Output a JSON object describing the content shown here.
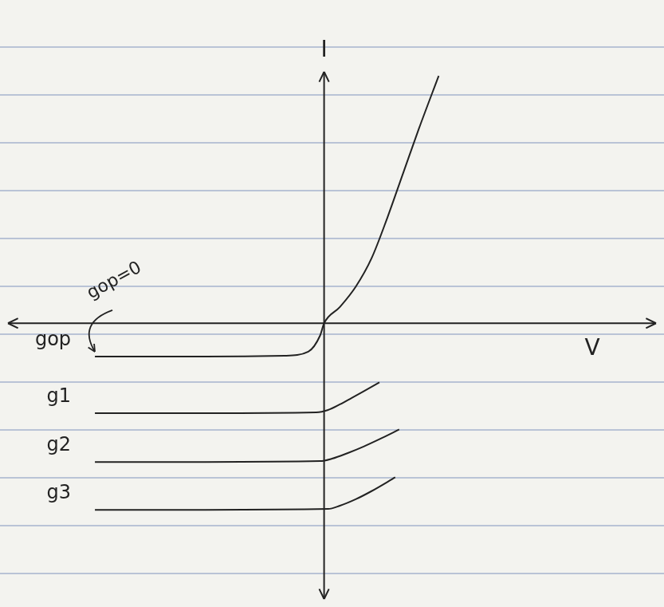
{
  "chart_data": {
    "type": "line",
    "x_label": "V",
    "y_label": "I",
    "xlim": [
      -4,
      4.2
    ],
    "ylim": [
      -3.4,
      3.1
    ],
    "tick_labels": false,
    "grid": false,
    "series": [
      {
        "name": "gop",
        "color": "#222222",
        "x": [
          -2.9,
          -1.5,
          -0.5,
          -0.2,
          -0.05,
          0,
          0.2,
          0.4,
          0.6,
          0.8,
          1.0,
          1.2,
          1.45
        ],
        "values": [
          -0.41,
          -0.41,
          -0.4,
          -0.35,
          -0.15,
          0,
          0.2,
          0.45,
          0.8,
          1.3,
          1.85,
          2.4,
          3.05
        ]
      },
      {
        "name": "g1",
        "color": "#222222",
        "x": [
          -2.9,
          -1.5,
          -0.1,
          0.05,
          0.2,
          0.35,
          0.5,
          0.7
        ],
        "values": [
          -1.11,
          -1.11,
          -1.1,
          -1.07,
          -1.0,
          -0.92,
          -0.84,
          -0.73
        ]
      },
      {
        "name": "g2",
        "color": "#222222",
        "x": [
          -2.9,
          -1.5,
          -0.05,
          0.1,
          0.3,
          0.5,
          0.7,
          0.95
        ],
        "values": [
          -1.71,
          -1.71,
          -1.7,
          -1.67,
          -1.6,
          -1.52,
          -1.43,
          -1.31
        ]
      },
      {
        "name": "g3",
        "color": "#222222",
        "x": [
          -2.9,
          -1.5,
          0.05,
          0.2,
          0.4,
          0.6,
          0.9
        ],
        "values": [
          -2.3,
          -2.3,
          -2.29,
          -2.25,
          -2.17,
          -2.07,
          -1.9
        ]
      }
    ],
    "annotations": [
      {
        "text": "gop=0",
        "x": -2.9,
        "y": -0.41
      }
    ]
  }
}
